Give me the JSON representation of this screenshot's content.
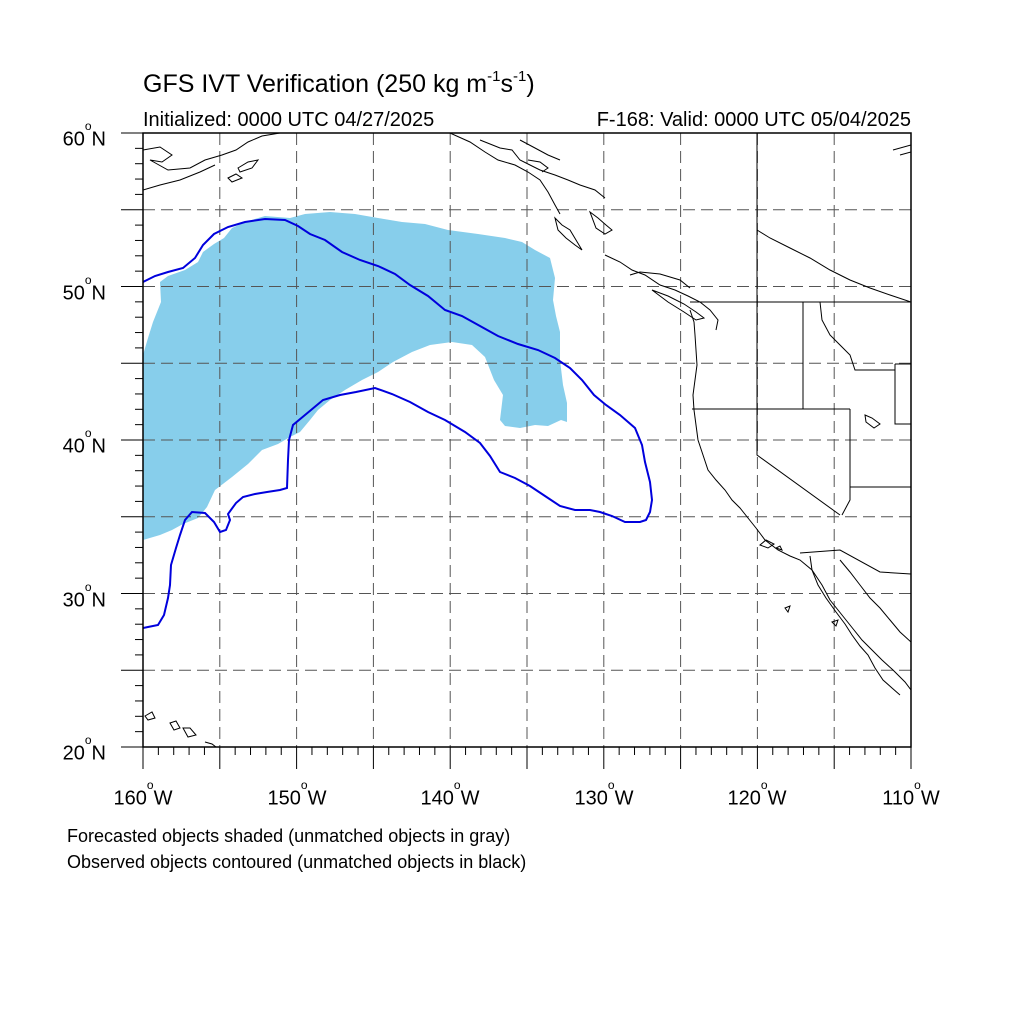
{
  "title_prefix": "GFS IVT Verification (250 kg m",
  "title_exp1": "-1",
  "title_mid": "s",
  "title_exp2": "-1",
  "title_suffix": ")",
  "subtitle_left": "Initialized: 0000 UTC 04/27/2025",
  "subtitle_right": "F-168: Valid: 0000 UTC 05/04/2025",
  "degree_symbol": "o",
  "lat_labels": [
    "60",
    "50",
    "40",
    "30",
    "20"
  ],
  "lat_suffix": "N",
  "lon_labels": [
    "160",
    "150",
    "140",
    "130",
    "120",
    "110"
  ],
  "lon_suffix": "W",
  "caption_forecast": "Forecasted objects shaded (unmatched objects in gray)",
  "caption_observed": "Observed objects contoured (unmatched objects in black)",
  "colors": {
    "forecast_fill": "#87ceeb",
    "observed_contour": "#0000dd",
    "coastline": "#000000",
    "grid": "#555555"
  },
  "map_extent": {
    "lon_min": -160,
    "lon_max": -110,
    "lat_min": 20,
    "lat_max": 60
  }
}
